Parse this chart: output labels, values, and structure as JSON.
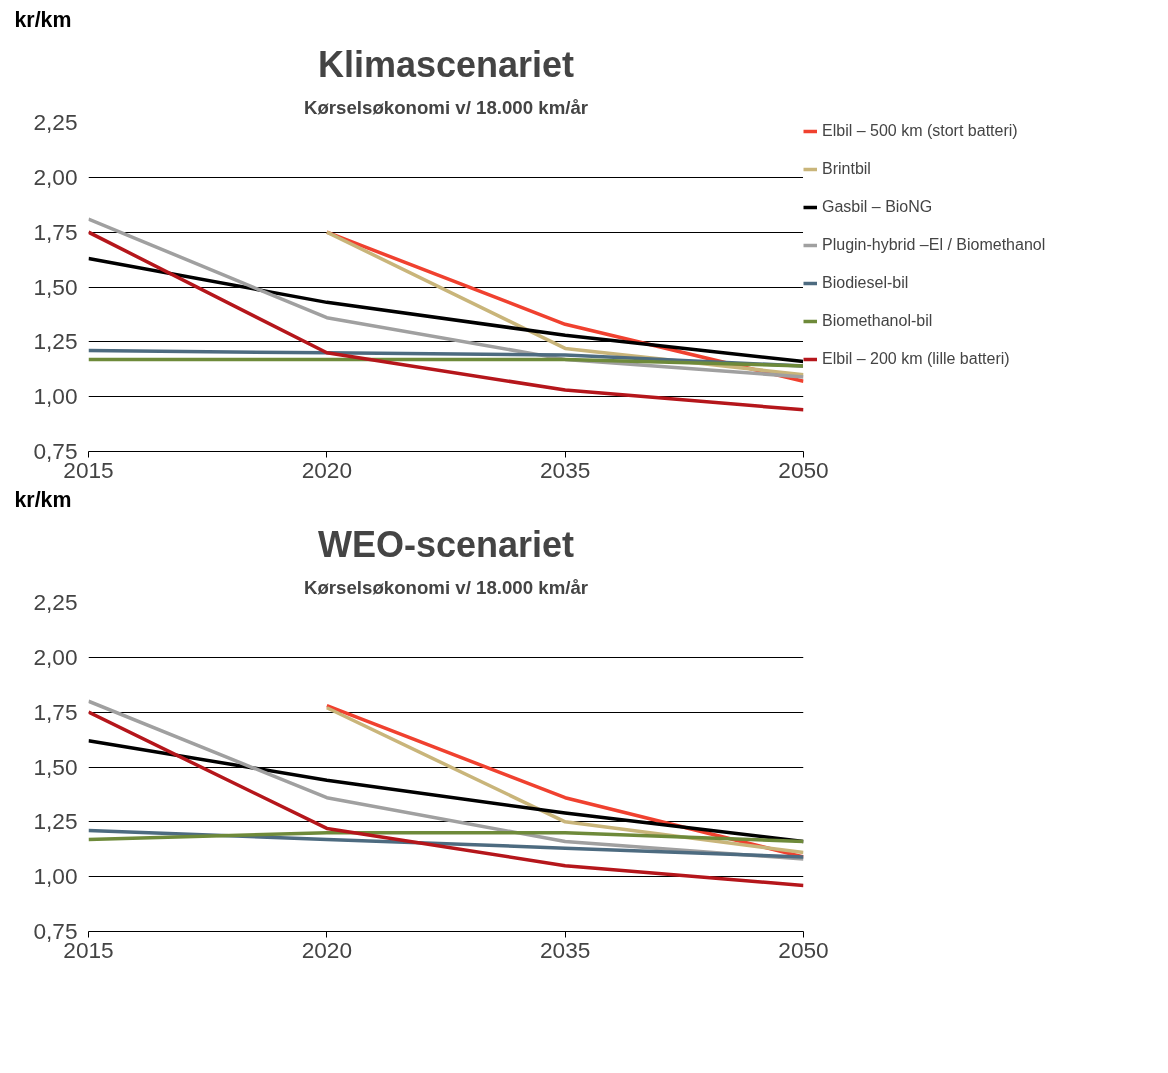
{
  "chart_data": [
    {
      "type": "line",
      "title": "Klimascenariet",
      "subtitle": "Kørselsøkonomi v/ 18.000 km/år",
      "ylabel": "kr/km",
      "categories": [
        "2015",
        "2020",
        "2035",
        "2050"
      ],
      "ylim": [
        0.75,
        2.25
      ],
      "yticks": [
        {
          "value": 0.75,
          "label": "0,75"
        },
        {
          "value": 1.0,
          "label": "1,00"
        },
        {
          "value": 1.25,
          "label": "1,25"
        },
        {
          "value": 1.5,
          "label": "1,50"
        },
        {
          "value": 1.75,
          "label": "1,75"
        },
        {
          "value": 2.0,
          "label": "2,00"
        },
        {
          "value": 2.25,
          "label": "2,25"
        }
      ],
      "grid": "y",
      "legend": "top right",
      "line_style": "solid",
      "marker": "none",
      "series": [
        {
          "name": "Elbil – 500 km (stort batteri)",
          "color": "#f0412f",
          "values": [
            null,
            1.75,
            1.33,
            1.07
          ]
        },
        {
          "name": "Brintbil",
          "color": "#c9b57a",
          "values": [
            null,
            1.75,
            1.22,
            1.1
          ]
        },
        {
          "name": "Gasbil – BioNG",
          "color": "#000000",
          "values": [
            1.63,
            1.43,
            1.28,
            1.16
          ]
        },
        {
          "name": "Plugin-hybrid –El / Biomethanol",
          "color": "#a0a0a0",
          "values": [
            1.81,
            1.36,
            1.17,
            1.09
          ]
        },
        {
          "name": "Biodiesel-bil",
          "color": "#4d6b80",
          "values": [
            1.21,
            1.2,
            1.19,
            1.14
          ]
        },
        {
          "name": "Biomethanol-bil",
          "color": "#6e8a3a",
          "values": [
            1.17,
            1.17,
            1.17,
            1.14
          ]
        },
        {
          "name": "Elbil – 200 km (lille batteri)",
          "color": "#b5161b",
          "values": [
            1.75,
            1.2,
            1.03,
            0.94
          ]
        }
      ]
    },
    {
      "type": "line",
      "title": "WEO-scenariet",
      "subtitle": "Kørselsøkonomi v/ 18.000 km/år",
      "ylabel": "kr/km",
      "categories": [
        "2015",
        "2020",
        "2035",
        "2050"
      ],
      "ylim": [
        0.75,
        2.25
      ],
      "yticks": [
        {
          "value": 0.75,
          "label": "0,75"
        },
        {
          "value": 1.0,
          "label": "1,00"
        },
        {
          "value": 1.25,
          "label": "1,25"
        },
        {
          "value": 1.5,
          "label": "1,50"
        },
        {
          "value": 1.75,
          "label": "1,75"
        },
        {
          "value": 2.0,
          "label": "2,00"
        },
        {
          "value": 2.25,
          "label": "2,25"
        }
      ],
      "grid": "y",
      "line_style": "solid",
      "marker": "none",
      "series": [
        {
          "color": "#f0412f",
          "values": [
            null,
            1.78,
            1.36,
            1.09
          ]
        },
        {
          "color": "#c9b57a",
          "values": [
            null,
            1.77,
            1.25,
            1.11
          ]
        },
        {
          "color": "#000000",
          "values": [
            1.62,
            1.44,
            1.29,
            1.16
          ]
        },
        {
          "color": "#a0a0a0",
          "values": [
            1.8,
            1.36,
            1.16,
            1.08
          ]
        },
        {
          "color": "#4d6b80",
          "values": [
            1.21,
            1.17,
            1.13,
            1.09
          ]
        },
        {
          "color": "#6e8a3a",
          "values": [
            1.17,
            1.2,
            1.2,
            1.16
          ]
        },
        {
          "color": "#b5161b",
          "values": [
            1.75,
            1.22,
            1.05,
            0.96
          ]
        }
      ]
    }
  ]
}
